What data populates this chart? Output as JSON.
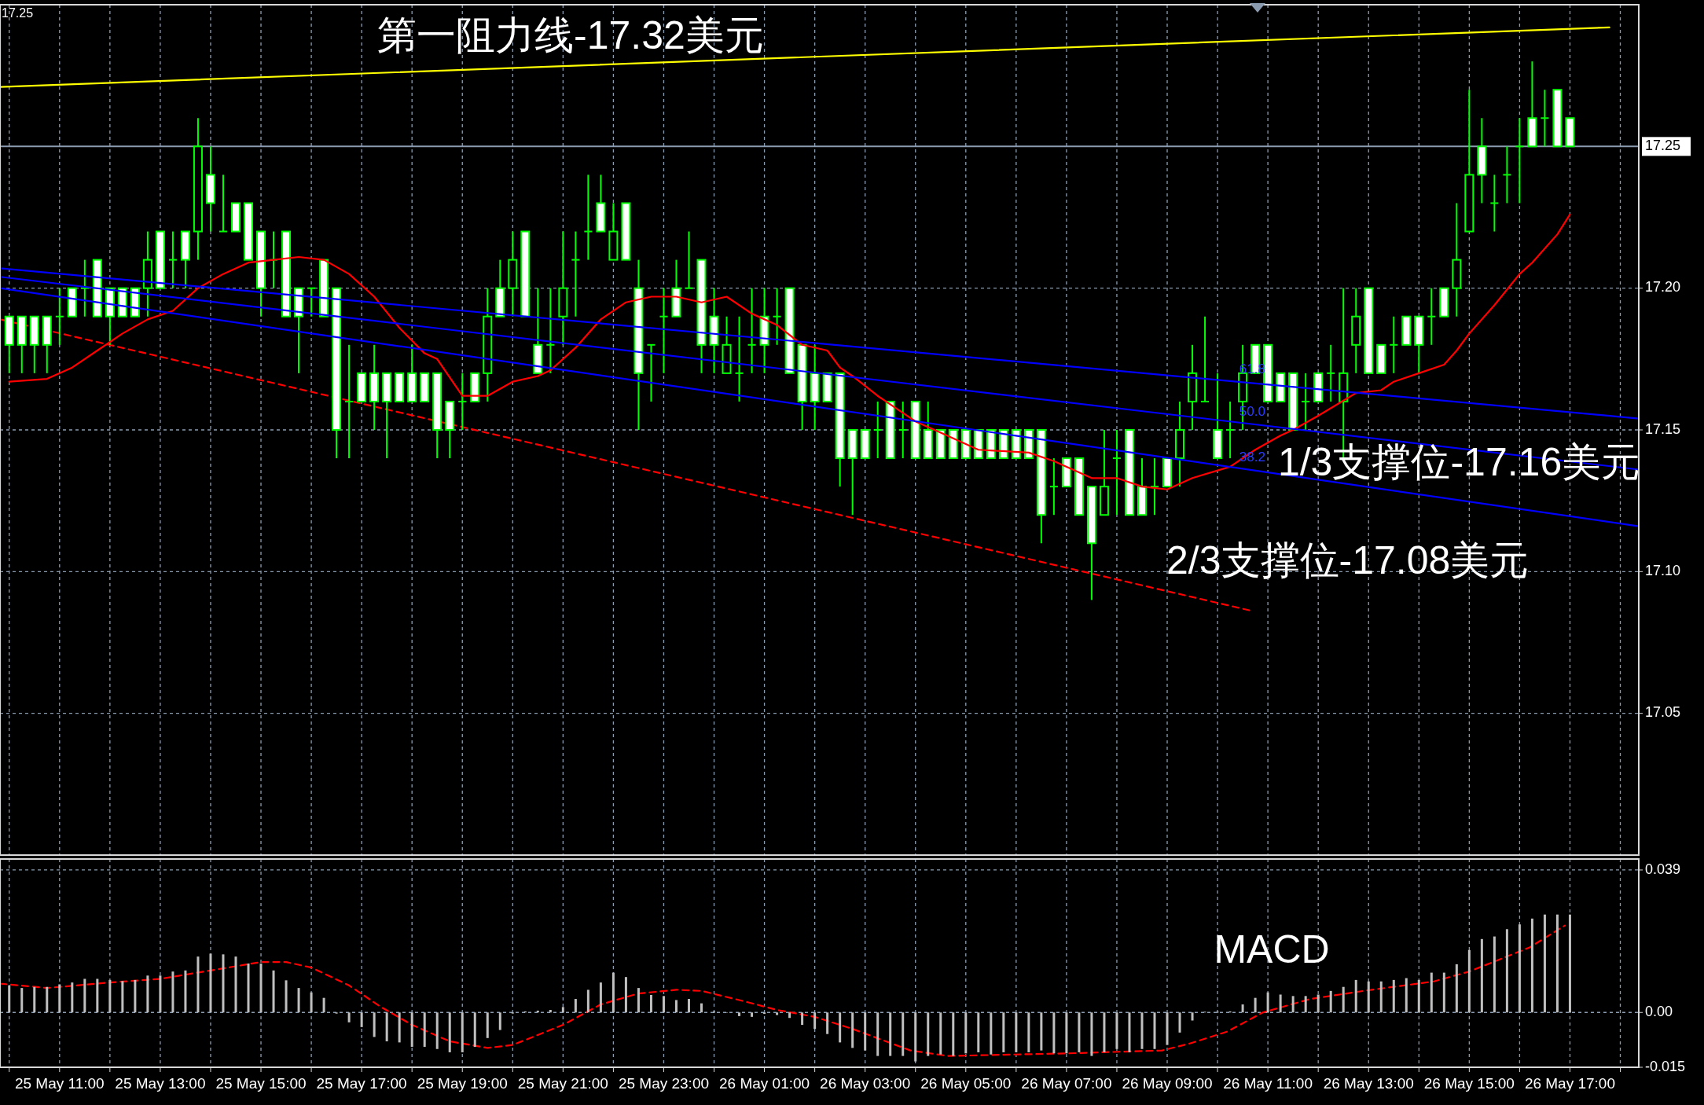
{
  "chart_data": [
    {
      "type": "candlestick",
      "color": "#00ff00",
      "xlim": [
        "--05-25T09:49",
        "--05-26T18:22"
      ],
      "ylim": [
        17.0,
        17.3
      ],
      "xticks": [
        {
          "value": "--05-25T10:00",
          "label": null
        },
        {
          "value": "--05-25T11:00",
          "label": null
        },
        {
          "value": "--05-25T12:00",
          "label": null
        },
        {
          "value": "--05-25T13:00",
          "label": null
        },
        {
          "value": "--05-25T14:00",
          "label": null
        },
        {
          "value": "--05-25T15:00",
          "label": null
        },
        {
          "value": "--05-25T16:00",
          "label": null
        },
        {
          "value": "--05-25T17:00",
          "label": null
        },
        {
          "value": "--05-25T18:00",
          "label": null
        },
        {
          "value": "--05-25T19:00",
          "label": null
        },
        {
          "value": "--05-25T20:00",
          "label": null
        },
        {
          "value": "--05-25T21:00",
          "label": null
        },
        {
          "value": "--05-25T22:00",
          "label": null
        },
        {
          "value": "--05-25T23:00",
          "label": null
        },
        {
          "value": "--05-26T00:00",
          "label": null
        },
        {
          "value": "--05-26T01:00",
          "label": null
        },
        {
          "value": "--05-26T02:00",
          "label": null
        },
        {
          "value": "--05-26T03:00",
          "label": null
        },
        {
          "value": "--05-26T04:00",
          "label": null
        },
        {
          "value": "--05-26T05:00",
          "label": null
        },
        {
          "value": "--05-26T06:00",
          "label": null
        },
        {
          "value": "--05-26T07:00",
          "label": null
        },
        {
          "value": "--05-26T08:00",
          "label": null
        },
        {
          "value": "--05-26T09:00",
          "label": null
        },
        {
          "value": "--05-26T10:00",
          "label": null
        },
        {
          "value": "--05-26T11:00",
          "label": null
        },
        {
          "value": "--05-26T12:00",
          "label": null
        },
        {
          "value": "--05-26T13:00",
          "label": null
        },
        {
          "value": "--05-26T14:00",
          "label": null
        },
        {
          "value": "--05-26T15:00",
          "label": null
        },
        {
          "value": "--05-26T16:00",
          "label": null
        },
        {
          "value": "--05-26T17:00",
          "label": null
        },
        {
          "value": "--05-26T18:00",
          "label": null
        }
      ],
      "yticks": [
        {
          "value": 17.2,
          "label": "17.20"
        },
        17.15,
        {
          "value": 17.1,
          "label": "17.10"
        },
        17.05
      ],
      "tick_labels": "y",
      "grid": true,
      "x": [
        "--05-25T10:00",
        "--05-25T10:15",
        "--05-25T10:30",
        "--05-25T10:45",
        "--05-25T11:00",
        "--05-25T11:15",
        "--05-25T11:30",
        "--05-25T11:45",
        "--05-25T12:00",
        "--05-25T12:15",
        "--05-25T12:30",
        "--05-25T12:45",
        "--05-25T13:00",
        "--05-25T13:15",
        "--05-25T13:30",
        "--05-25T13:45",
        "--05-25T14:00",
        "--05-25T14:15",
        "--05-25T14:30",
        "--05-25T14:45",
        "--05-25T15:00",
        "--05-25T15:15",
        "--05-25T15:30",
        "--05-25T15:45",
        "--05-25T16:00",
        "--05-25T16:15",
        "--05-25T16:30",
        "--05-25T16:45",
        "--05-25T17:00",
        "--05-25T17:15",
        "--05-25T17:30",
        "--05-25T17:45",
        "--05-25T18:00",
        "--05-25T18:15",
        "--05-25T18:30",
        "--05-25T18:45",
        "--05-25T19:00",
        "--05-25T19:15",
        "--05-25T19:30",
        "--05-25T19:45",
        "--05-25T20:00",
        "--05-25T20:15",
        "--05-25T20:30",
        "--05-25T20:45",
        "--05-25T21:00",
        "--05-25T21:15",
        "--05-25T21:30",
        "--05-25T21:45",
        "--05-25T22:00",
        "--05-25T22:15",
        "--05-25T22:30",
        "--05-25T22:45",
        "--05-25T23:00",
        "--05-25T23:15",
        "--05-25T23:30",
        "--05-25T23:45",
        "--05-26T00:00",
        "--05-26T00:15",
        "--05-26T00:30",
        "--05-26T00:45",
        "--05-26T01:00",
        "--05-26T01:15",
        "--05-26T01:30",
        "--05-26T01:45",
        "--05-26T02:00",
        "--05-26T02:15",
        "--05-26T02:30",
        "--05-26T02:45",
        "--05-26T03:00",
        "--05-26T03:15",
        "--05-26T03:30",
        "--05-26T03:45",
        "--05-26T04:00",
        "--05-26T04:15",
        "--05-26T04:30",
        "--05-26T04:45",
        "--05-26T05:00",
        "--05-26T05:15",
        "--05-26T05:30",
        "--05-26T05:45",
        "--05-26T06:00",
        "--05-26T06:15",
        "--05-26T06:30",
        "--05-26T06:45",
        "--05-26T07:00",
        "--05-26T07:15",
        "--05-26T07:30",
        "--05-26T07:45",
        "--05-26T08:00",
        "--05-26T08:15",
        "--05-26T08:30",
        "--05-26T08:45",
        "--05-26T09:00",
        "--05-26T09:15",
        "--05-26T09:30",
        "--05-26T09:45",
        "--05-26T10:00",
        "--05-26T10:15",
        "--05-26T10:30",
        "--05-26T10:45",
        "--05-26T11:00",
        "--05-26T11:15",
        "--05-26T11:30",
        "--05-26T11:45",
        "--05-26T12:00",
        "--05-26T12:15",
        "--05-26T12:30",
        "--05-26T12:45",
        "--05-26T13:00",
        "--05-26T13:15",
        "--05-26T13:30",
        "--05-26T13:45",
        "--05-26T14:00",
        "--05-26T14:15",
        "--05-26T14:30",
        "--05-26T14:45",
        "--05-26T15:00",
        "--05-26T15:15",
        "--05-26T15:30",
        "--05-26T15:45",
        "--05-26T16:00",
        "--05-26T16:15",
        "--05-26T16:30",
        "--05-26T16:45",
        "--05-26T17:00"
      ],
      "ohlc": [
        [
          17.19,
          17.19,
          17.17,
          17.18
        ],
        [
          17.19,
          17.19,
          17.17,
          17.18
        ],
        [
          17.19,
          17.19,
          17.17,
          17.18
        ],
        [
          17.19,
          17.19,
          17.17,
          17.18
        ],
        [
          17.19,
          17.2,
          17.18,
          17.19
        ],
        [
          17.2,
          17.2,
          17.19,
          17.19
        ],
        [
          17.2,
          17.21,
          17.19,
          17.2
        ],
        [
          17.21,
          17.21,
          17.19,
          17.19
        ],
        [
          17.2,
          17.2,
          17.18,
          17.19
        ],
        [
          17.2,
          17.2,
          17.19,
          17.19
        ],
        [
          17.2,
          17.2,
          17.19,
          17.19
        ],
        [
          17.2,
          17.22,
          17.19,
          17.21
        ],
        [
          17.22,
          17.22,
          17.2,
          17.2
        ],
        [
          17.21,
          17.22,
          17.2,
          17.21
        ],
        [
          17.22,
          17.22,
          17.2,
          17.21
        ],
        [
          17.22,
          17.26,
          17.21,
          17.25
        ],
        [
          17.24,
          17.25,
          17.22,
          17.23
        ],
        [
          17.22,
          17.24,
          17.22,
          17.22
        ],
        [
          17.23,
          17.23,
          17.22,
          17.22
        ],
        [
          17.23,
          17.23,
          17.21,
          17.21
        ],
        [
          17.22,
          17.22,
          17.19,
          17.2
        ],
        [
          17.21,
          17.22,
          17.2,
          17.21
        ],
        [
          17.22,
          17.22,
          17.19,
          17.19
        ],
        [
          17.2,
          17.2,
          17.17,
          17.19
        ],
        [
          17.2,
          17.2,
          17.19,
          17.2
        ],
        [
          17.21,
          17.21,
          17.19,
          17.19
        ],
        [
          17.2,
          17.2,
          17.14,
          17.15
        ],
        [
          17.16,
          17.18,
          17.14,
          17.16
        ],
        [
          17.17,
          17.17,
          17.16,
          17.16
        ],
        [
          17.17,
          17.18,
          17.15,
          17.16
        ],
        [
          17.17,
          17.17,
          17.14,
          17.16
        ],
        [
          17.17,
          17.17,
          17.16,
          17.16
        ],
        [
          17.17,
          17.18,
          17.16,
          17.16
        ],
        [
          17.17,
          17.17,
          17.16,
          17.16
        ],
        [
          17.17,
          17.17,
          17.14,
          17.15
        ],
        [
          17.16,
          17.16,
          17.14,
          17.15
        ],
        [
          17.16,
          17.17,
          17.15,
          17.16
        ],
        [
          17.17,
          17.17,
          17.16,
          17.16
        ],
        [
          17.17,
          17.2,
          17.16,
          17.19
        ],
        [
          17.2,
          17.21,
          17.19,
          17.19
        ],
        [
          17.2,
          17.22,
          17.19,
          17.21
        ],
        [
          17.22,
          17.22,
          17.19,
          17.19
        ],
        [
          17.18,
          17.2,
          17.17,
          17.17
        ],
        [
          17.18,
          17.2,
          17.17,
          17.18
        ],
        [
          17.19,
          17.22,
          17.18,
          17.2
        ],
        [
          17.21,
          17.22,
          17.19,
          17.21
        ],
        [
          17.22,
          17.24,
          17.21,
          17.22
        ],
        [
          17.23,
          17.24,
          17.22,
          17.22
        ],
        [
          17.21,
          17.23,
          17.21,
          17.22
        ],
        [
          17.23,
          17.23,
          17.21,
          17.21
        ],
        [
          17.2,
          17.21,
          17.15,
          17.17
        ],
        [
          17.18,
          17.18,
          17.16,
          17.18
        ],
        [
          17.19,
          17.2,
          17.17,
          17.19
        ],
        [
          17.2,
          17.21,
          17.19,
          17.19
        ],
        [
          17.2,
          17.22,
          17.2,
          17.2
        ],
        [
          17.21,
          17.21,
          17.17,
          17.18
        ],
        [
          17.19,
          17.2,
          17.17,
          17.18
        ],
        [
          17.17,
          17.19,
          17.17,
          17.18
        ],
        [
          17.17,
          17.19,
          17.16,
          17.17
        ],
        [
          17.18,
          17.2,
          17.17,
          17.18
        ],
        [
          17.19,
          17.2,
          17.17,
          17.18
        ],
        [
          17.19,
          17.2,
          17.18,
          17.19
        ],
        [
          17.2,
          17.2,
          17.17,
          17.17
        ],
        [
          17.18,
          17.18,
          17.15,
          17.16
        ],
        [
          17.17,
          17.18,
          17.15,
          17.16
        ],
        [
          17.17,
          17.17,
          17.16,
          17.16
        ],
        [
          17.17,
          17.17,
          17.13,
          17.14
        ],
        [
          17.15,
          17.15,
          17.12,
          17.14
        ],
        [
          17.15,
          17.15,
          17.14,
          17.14
        ],
        [
          17.15,
          17.16,
          17.14,
          17.15
        ],
        [
          17.16,
          17.16,
          17.14,
          17.14
        ],
        [
          17.15,
          17.16,
          17.14,
          17.15
        ],
        [
          17.16,
          17.16,
          17.14,
          17.14
        ],
        [
          17.15,
          17.16,
          17.14,
          17.14
        ],
        [
          17.15,
          17.15,
          17.14,
          17.14
        ],
        [
          17.15,
          17.15,
          17.14,
          17.14
        ],
        [
          17.15,
          17.15,
          17.14,
          17.14
        ],
        [
          17.15,
          17.15,
          17.14,
          17.14
        ],
        [
          17.15,
          17.15,
          17.14,
          17.14
        ],
        [
          17.15,
          17.15,
          17.14,
          17.14
        ],
        [
          17.15,
          17.15,
          17.14,
          17.14
        ],
        [
          17.15,
          17.15,
          17.14,
          17.14
        ],
        [
          17.15,
          17.15,
          17.11,
          17.12
        ],
        [
          17.13,
          17.14,
          17.12,
          17.13
        ],
        [
          17.14,
          17.14,
          17.13,
          17.13
        ],
        [
          17.14,
          17.14,
          17.12,
          17.12
        ],
        [
          17.13,
          17.13,
          17.09,
          17.11
        ],
        [
          17.12,
          17.15,
          17.12,
          17.13
        ],
        [
          17.14,
          17.15,
          17.12,
          17.14
        ],
        [
          17.15,
          17.15,
          17.12,
          17.12
        ],
        [
          17.13,
          17.14,
          17.12,
          17.12
        ],
        [
          17.13,
          17.14,
          17.12,
          17.13
        ],
        [
          17.14,
          17.14,
          17.13,
          17.13
        ],
        [
          17.14,
          17.16,
          17.13,
          17.15
        ],
        [
          17.16,
          17.18,
          17.15,
          17.17
        ],
        [
          17.16,
          17.19,
          17.16,
          17.16
        ],
        [
          17.15,
          17.17,
          17.14,
          17.14
        ],
        [
          17.15,
          17.16,
          17.14,
          17.15
        ],
        [
          17.16,
          17.18,
          17.15,
          17.17
        ],
        [
          17.18,
          17.18,
          17.17,
          17.17
        ],
        [
          17.18,
          17.18,
          17.16,
          17.16
        ],
        [
          17.17,
          17.17,
          17.16,
          17.16
        ],
        [
          17.17,
          17.17,
          17.15,
          17.15
        ],
        [
          17.16,
          17.17,
          17.15,
          17.16
        ],
        [
          17.17,
          17.17,
          17.16,
          17.16
        ],
        [
          17.17,
          17.18,
          17.16,
          17.17
        ],
        [
          17.16,
          17.2,
          17.14,
          17.17
        ],
        [
          17.18,
          17.2,
          17.17,
          17.19
        ],
        [
          17.2,
          17.2,
          17.17,
          17.17
        ],
        [
          17.18,
          17.18,
          17.17,
          17.17
        ],
        [
          17.18,
          17.19,
          17.17,
          17.18
        ],
        [
          17.19,
          17.19,
          17.18,
          17.18
        ],
        [
          17.19,
          17.19,
          17.17,
          17.18
        ],
        [
          17.19,
          17.2,
          17.18,
          17.19
        ],
        [
          17.2,
          17.2,
          17.19,
          17.19
        ],
        [
          17.2,
          17.23,
          17.19,
          17.21
        ],
        [
          17.22,
          17.27,
          17.22,
          17.24
        ],
        [
          17.25,
          17.26,
          17.23,
          17.24
        ],
        [
          17.23,
          17.24,
          17.22,
          17.23
        ],
        [
          17.24,
          17.25,
          17.23,
          17.24
        ],
        [
          17.25,
          17.26,
          17.23,
          17.25
        ],
        [
          17.26,
          17.28,
          17.25,
          17.25
        ],
        [
          17.26,
          17.27,
          17.25,
          17.26
        ],
        [
          17.27,
          17.27,
          17.25,
          17.25
        ],
        [
          17.26,
          17.26,
          17.25,
          17.25
        ]
      ],
      "series": [
        {
          "type": "line",
          "color": "#ff0000",
          "x": [
            "--05-25T10:00",
            "--05-25T10:45",
            "--05-25T11:15",
            "--05-25T11:45",
            "--05-25T12:15",
            "--05-25T12:45",
            "--05-25T13:15",
            "--05-25T13:45",
            "--05-25T14:15",
            "--05-25T14:45",
            "--05-25T15:15",
            "--05-25T15:45",
            "--05-25T16:15",
            "--05-25T16:45",
            "--05-25T17:15",
            "--05-25T17:45",
            "--05-25T18:15",
            "--05-25T18:30",
            "--05-25T19:00",
            "--05-25T19:30",
            "--05-25T20:00",
            "--05-25T20:30",
            "--05-25T20:45",
            "--05-25T21:15",
            "--05-25T21:45",
            "--05-25T22:15",
            "--05-25T22:45",
            "--05-25T23:15",
            "--05-25T23:45",
            "--05-26T00:15",
            "--05-26T00:45",
            "--05-26T01:15",
            "--05-26T01:45",
            "--05-26T02:15",
            "--05-26T02:30",
            "--05-26T02:45",
            "--05-26T03:15",
            "--05-26T04:00",
            "--05-26T04:30",
            "--05-26T05:15",
            "--05-26T06:15",
            "--05-26T06:45",
            "--05-26T07:30",
            "--05-26T08:00",
            "--05-26T08:30",
            "--05-26T09:00",
            "--05-26T09:30",
            "--05-26T10:15",
            "--05-26T10:45",
            "--05-26T11:15",
            "--05-26T11:30",
            "--05-26T12:00",
            "--05-26T12:45",
            "--05-26T13:15",
            "--05-26T13:30",
            "--05-26T14:00",
            "--05-26T14:30",
            "--05-26T14:45",
            "--05-26T15:00",
            "--05-26T15:30",
            "--05-26T16:00",
            "--05-26T16:15",
            "--05-26T16:45",
            "--05-26T17:00"
          ],
          "values": [
            17.167,
            17.168,
            17.172,
            17.178,
            17.184,
            17.189,
            17.192,
            17.2,
            17.205,
            17.209,
            17.21,
            17.211,
            17.21,
            17.205,
            17.197,
            17.186,
            17.177,
            17.175,
            17.162,
            17.162,
            17.167,
            17.169,
            17.171,
            17.179,
            17.189,
            17.195,
            17.197,
            17.197,
            17.195,
            17.197,
            17.191,
            17.187,
            17.18,
            17.178,
            17.172,
            17.169,
            17.162,
            17.153,
            17.149,
            17.143,
            17.142,
            17.139,
            17.133,
            17.133,
            17.13,
            17.129,
            17.133,
            17.137,
            17.143,
            17.148,
            17.15,
            17.155,
            17.163,
            17.164,
            17.167,
            17.17,
            17.173,
            17.178,
            17.184,
            17.194,
            17.205,
            17.209,
            17.219,
            17.226
          ]
        },
        {
          "type": "line",
          "color": "#ffff00",
          "x": [
            "--05-25T09:49",
            "--05-26T17:47"
          ],
          "values": [
            17.271,
            17.292
          ]
        },
        {
          "type": "line",
          "color": "#0000ff",
          "x": [
            "--05-25T09:49",
            "--05-26T18:22"
          ],
          "values": [
            17.207,
            17.154
          ]
        },
        {
          "type": "line",
          "color": "#0000ff",
          "x": [
            "--05-25T09:49",
            "--05-26T18:22"
          ],
          "values": [
            17.204,
            17.136
          ]
        },
        {
          "type": "line",
          "color": "#0000ff",
          "x": [
            "--05-25T09:49",
            "--05-26T18:22"
          ],
          "values": [
            17.2,
            17.116
          ]
        },
        {
          "type": "line",
          "color": "#ff0000",
          "line_style": "dashed",
          "x": [
            "--05-25T09:49",
            "--05-26T10:43"
          ],
          "values": [
            17.189,
            17.086
          ]
        }
      ],
      "ref_lines": [
        {
          "axis": "y",
          "value": 17.25,
          "label": "17.25",
          "color": "#8c9cb0"
        }
      ],
      "annotations": [
        "第一阻力线-17.32美元",
        {
          "text": "1/3支撑位-17.16美元",
          "x": "--05-26T11:12",
          "y": 17.134
        },
        "2/3支撑位-17.08美元",
        {
          "text": "61.8",
          "x": "--05-26T10:26",
          "y": 17.17
        },
        {
          "text": "50.0",
          "x": "--05-26T10:26",
          "y": 17.155
        },
        {
          "text": "38.2",
          "x": "--05-26T10:26",
          "y": 17.139
        },
        "17.25"
      ]
    },
    {
      "type": "bar",
      "xlim": [
        "--05-25T09:49",
        "--05-26T18:22"
      ],
      "ylim": [
        -0.015,
        0.042
      ],
      "xticks": [
        {
          "value": "--05-25T10:00",
          "label": null
        },
        {
          "value": "--05-25T11:00",
          "label": "25 May 11:00"
        },
        {
          "value": "--05-25T12:00",
          "label": null
        },
        {
          "value": "--05-25T13:00",
          "label": "25 May 13:00"
        },
        {
          "value": "--05-25T14:00",
          "label": null
        },
        {
          "value": "--05-25T15:00",
          "label": "25 May 15:00"
        },
        {
          "value": "--05-25T16:00",
          "label": null
        },
        {
          "value": "--05-25T17:00",
          "label": "25 May 17:00"
        },
        {
          "value": "--05-25T18:00",
          "label": null
        },
        {
          "value": "--05-25T19:00",
          "label": "25 May 19:00"
        },
        {
          "value": "--05-25T20:00",
          "label": null
        },
        {
          "value": "--05-25T21:00",
          "label": "25 May 21:00"
        },
        {
          "value": "--05-25T22:00",
          "label": null
        },
        {
          "value": "--05-25T23:00",
          "label": "25 May 23:00"
        },
        {
          "value": "--05-26T00:00",
          "label": null
        },
        {
          "value": "--05-26T01:00",
          "label": "26 May 01:00"
        },
        {
          "value": "--05-26T02:00",
          "label": null
        },
        {
          "value": "--05-26T03:00",
          "label": "26 May 03:00"
        },
        {
          "value": "--05-26T04:00",
          "label": null
        },
        {
          "value": "--05-26T05:00",
          "label": "26 May 05:00"
        },
        {
          "value": "--05-26T06:00",
          "label": null
        },
        {
          "value": "--05-26T07:00",
          "label": "26 May 07:00"
        },
        {
          "value": "--05-26T08:00",
          "label": null
        },
        {
          "value": "--05-26T09:00",
          "label": "26 May 09:00"
        },
        {
          "value": "--05-26T10:00",
          "label": null
        },
        {
          "value": "--05-26T11:00",
          "label": "26 May 11:00"
        },
        {
          "value": "--05-26T12:00",
          "label": null
        },
        {
          "value": "--05-26T13:00",
          "label": "26 May 13:00"
        },
        {
          "value": "--05-26T14:00",
          "label": null
        },
        {
          "value": "--05-26T15:00",
          "label": "26 May 15:00"
        },
        {
          "value": "--05-26T16:00",
          "label": null
        },
        {
          "value": "--05-26T17:00",
          "label": "26 May 17:00"
        },
        {
          "value": "--05-26T18:00",
          "label": null
        }
      ],
      "yticks": [
        0.039,
        {
          "value": 0,
          "label": "0.00"
        },
        -0.015
      ],
      "grid": true,
      "x": [
        "--05-25T10:00",
        "--05-25T10:15",
        "--05-25T10:30",
        "--05-25T10:45",
        "--05-25T11:00",
        "--05-25T11:15",
        "--05-25T11:30",
        "--05-25T11:45",
        "--05-25T12:00",
        "--05-25T12:15",
        "--05-25T12:30",
        "--05-25T12:45",
        "--05-25T13:00",
        "--05-25T13:15",
        "--05-25T13:30",
        "--05-25T13:45",
        "--05-25T14:00",
        "--05-25T14:15",
        "--05-25T14:30",
        "--05-25T14:45",
        "--05-25T15:00",
        "--05-25T15:15",
        "--05-25T15:30",
        "--05-25T15:45",
        "--05-25T16:00",
        "--05-25T16:15",
        "--05-25T16:30",
        "--05-25T16:45",
        "--05-25T17:00",
        "--05-25T17:15",
        "--05-25T17:30",
        "--05-25T17:45",
        "--05-25T18:00",
        "--05-25T18:15",
        "--05-25T18:30",
        "--05-25T18:45",
        "--05-25T19:00",
        "--05-25T19:15",
        "--05-25T19:30",
        "--05-25T19:45",
        "--05-25T20:00",
        "--05-25T20:15",
        "--05-25T20:30",
        "--05-25T20:45",
        "--05-25T21:00",
        "--05-25T21:15",
        "--05-25T21:30",
        "--05-25T21:45",
        "--05-25T22:00",
        "--05-25T22:15",
        "--05-25T22:30",
        "--05-25T22:45",
        "--05-25T23:00",
        "--05-25T23:15",
        "--05-25T23:30",
        "--05-25T23:45",
        "--05-26T00:00",
        "--05-26T00:15",
        "--05-26T00:30",
        "--05-26T00:45",
        "--05-26T01:00",
        "--05-26T01:15",
        "--05-26T01:30",
        "--05-26T01:45",
        "--05-26T02:00",
        "--05-26T02:15",
        "--05-26T02:30",
        "--05-26T02:45",
        "--05-26T03:00",
        "--05-26T03:15",
        "--05-26T03:30",
        "--05-26T03:45",
        "--05-26T04:00",
        "--05-26T04:15",
        "--05-26T04:30",
        "--05-26T04:45",
        "--05-26T05:00",
        "--05-26T05:15",
        "--05-26T05:30",
        "--05-26T05:45",
        "--05-26T06:00",
        "--05-26T06:15",
        "--05-26T06:30",
        "--05-26T06:45",
        "--05-26T07:00",
        "--05-26T07:15",
        "--05-26T07:30",
        "--05-26T07:45",
        "--05-26T08:00",
        "--05-26T08:15",
        "--05-26T08:30",
        "--05-26T08:45",
        "--05-26T09:00",
        "--05-26T09:15",
        "--05-26T09:30",
        "--05-26T09:45",
        "--05-26T10:00",
        "--05-26T10:15",
        "--05-26T10:30",
        "--05-26T10:45",
        "--05-26T11:00",
        "--05-26T11:15",
        "--05-26T11:30",
        "--05-26T11:45",
        "--05-26T12:00",
        "--05-26T12:15",
        "--05-26T12:30",
        "--05-26T12:45",
        "--05-26T13:00",
        "--05-26T13:15",
        "--05-26T13:30",
        "--05-26T13:45",
        "--05-26T14:00",
        "--05-26T14:15",
        "--05-26T14:30",
        "--05-26T14:45",
        "--05-26T15:00",
        "--05-26T15:15",
        "--05-26T15:30",
        "--05-26T15:45",
        "--05-26T16:00",
        "--05-26T16:15",
        "--05-26T16:30",
        "--05-26T16:45",
        "--05-26T17:00"
      ],
      "series": [
        {
          "type": "bar",
          "color": "#c0c0c0",
          "values": [
            0.0074,
            0.0067,
            0.007,
            0.007,
            0.0077,
            0.0082,
            0.0092,
            0.0092,
            0.0089,
            0.0086,
            0.0089,
            0.0101,
            0.0101,
            0.0112,
            0.0115,
            0.0153,
            0.0161,
            0.0159,
            0.0153,
            0.0134,
            0.0134,
            0.0115,
            0.0088,
            0.0067,
            0.0055,
            0.004,
            -0.0003,
            -0.0027,
            -0.004,
            -0.0067,
            -0.0079,
            -0.0082,
            -0.0094,
            -0.0094,
            -0.01,
            -0.0109,
            -0.0109,
            -0.0094,
            -0.007,
            -0.0048,
            -0.0003,
            0.0003,
            0.0005,
            0.0007,
            0.0015,
            0.0037,
            0.0062,
            0.0082,
            0.0109,
            0.0097,
            0.0067,
            0.0048,
            0.0045,
            0.0034,
            0.0037,
            0.0025,
            0.0003,
            0,
            -0.001,
            -0.0012,
            -0.0004,
            -0.0007,
            -0.0015,
            -0.0034,
            -0.0045,
            -0.0059,
            -0.0082,
            -0.0097,
            -0.0104,
            -0.0119,
            -0.0119,
            -0.0119,
            -0.0134,
            -0.0119,
            -0.0115,
            -0.0119,
            -0.0112,
            -0.0109,
            -0.0115,
            -0.0109,
            -0.0109,
            -0.0109,
            -0.0104,
            -0.0112,
            -0.0112,
            -0.0109,
            -0.0119,
            -0.0109,
            -0.01,
            -0.0109,
            -0.01,
            -0.01,
            -0.0089,
            -0.0055,
            -0.0022,
            0.0002,
            0.0002,
            0.0003,
            0.0022,
            0.004,
            0.0055,
            0.0049,
            0.0045,
            0.0045,
            0.0049,
            0.0059,
            0.007,
            0.0089,
            0.0085,
            0.0085,
            0.0089,
            0.0094,
            0.0089,
            0.0109,
            0.0109,
            0.0132,
            0.0171,
            0.0201,
            0.0208,
            0.0228,
            0.0241,
            0.0257,
            0.0268,
            0.0268,
            0.0268
          ]
        },
        {
          "type": "line",
          "color": "#ff0000",
          "line_style": "dashed",
          "x": [
            "--05-25T09:49",
            "--05-25T10:45",
            "--05-25T12:00",
            "--05-25T13:00",
            "--05-25T14:00",
            "--05-25T15:00",
            "--05-25T15:30",
            "--05-25T16:00",
            "--05-25T16:45",
            "--05-25T17:23",
            "--05-25T18:00",
            "--05-25T18:45",
            "--05-25T19:30",
            "--05-25T20:00",
            "--05-25T21:00",
            "--05-25T21:45",
            "--05-25T22:30",
            "--05-25T23:15",
            "--05-25T23:45",
            "--05-26T00:30",
            "--05-26T01:15",
            "--05-26T02:00",
            "--05-26T02:45",
            "--05-26T03:54",
            "--05-26T04:39",
            "--05-26T07:00",
            "--05-26T08:54",
            "--05-26T09:27",
            "--05-26T10:12",
            "--05-26T10:54",
            "--05-26T11:51",
            "--05-26T12:54",
            "--05-26T14:18",
            "--05-26T15:00",
            "--05-26T16:12",
            "--05-26T16:54"
          ],
          "values": [
            0.0079,
            0.0067,
            0.0082,
            0.0092,
            0.0115,
            0.0138,
            0.0138,
            0.0123,
            0.0074,
            0.0015,
            -0.0034,
            -0.0079,
            -0.0097,
            -0.0089,
            -0.0034,
            0.0022,
            0.0052,
            0.0062,
            0.0059,
            0.0034,
            0.0007,
            -0.0012,
            -0.0045,
            -0.0104,
            -0.0119,
            -0.0112,
            -0.0104,
            -0.0085,
            -0.0052,
            0,
            0.0037,
            0.0059,
            0.0085,
            0.0112,
            0.0178,
            0.0238
          ]
        }
      ],
      "annotations": [
        "MACD"
      ]
    }
  ]
}
